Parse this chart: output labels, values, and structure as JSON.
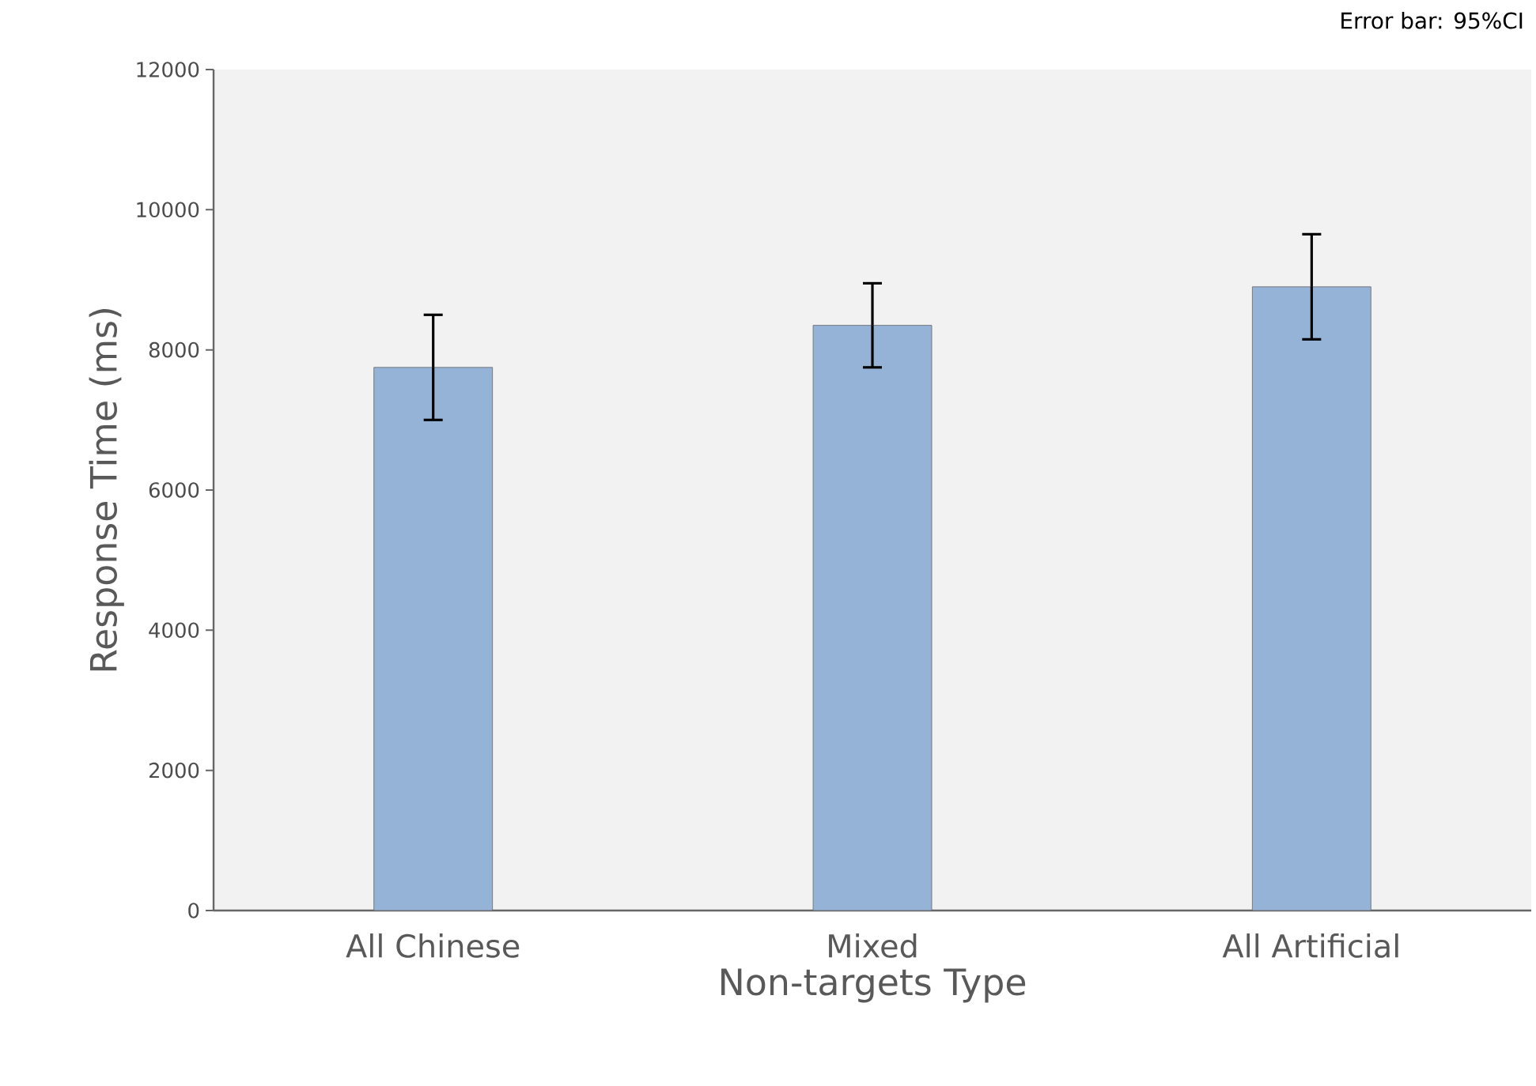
{
  "chart_data": {
    "type": "bar",
    "xlabel": "Non-targets Type",
    "ylabel": "Response Time (ms)",
    "categories": [
      "All Chinese",
      "Mixed",
      "All Artificial"
    ],
    "values": [
      7750,
      8350,
      8900
    ],
    "errors": [
      750,
      600,
      750
    ],
    "color": "#95b3d7",
    "ylim": [
      0,
      12000
    ],
    "yticks": [
      0,
      2000,
      4000,
      6000,
      8000,
      10000,
      12000
    ],
    "grid": false,
    "annotations": [
      "Error bar: 95%CI"
    ]
  }
}
